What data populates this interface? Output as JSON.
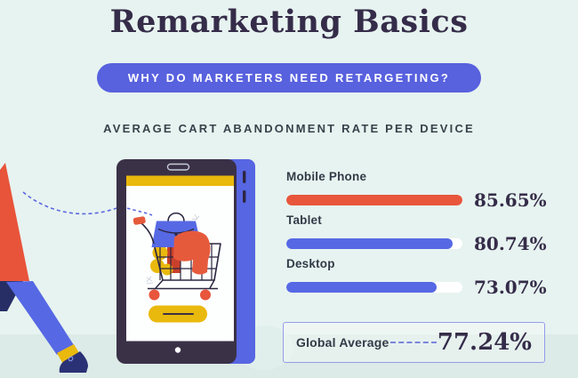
{
  "page": {
    "title": "Remarketing Basics",
    "banner": "WHY DO MARKETERS NEED RETARGETING?"
  },
  "chart_data": {
    "type": "bar",
    "orientation": "horizontal",
    "title": "AVERAGE CART ABANDONMENT RATE PER DEVICE",
    "categories": [
      "Mobile Phone",
      "Tablet",
      "Desktop"
    ],
    "values": [
      85.65,
      80.74,
      73.07
    ],
    "value_labels": [
      "85.65%",
      "80.74%",
      "73.07%"
    ],
    "bar_colors": [
      "#e8563c",
      "#5668e4",
      "#5668e4"
    ],
    "track_color": "#ffffff",
    "grid": false,
    "legend_position": "none",
    "scale_note": "bar lengths drawn relative to max value (85.65% = full track)",
    "global_average": {
      "label": "Global Average",
      "value": 77.24,
      "value_label": "77.24%"
    }
  },
  "illustration": {
    "elements": [
      "person-leg",
      "dashed-path",
      "smartphone",
      "shopping-cart",
      "shopping-bag",
      "cart-wheels"
    ],
    "colors": {
      "background": "#e7f3f0",
      "floor": "#dcebe7",
      "accent_blue": "#5861de",
      "accent_orange": "#e8563c",
      "accent_yellow": "#eab90d",
      "phone_body": "#3a3147",
      "ink": "#352c49"
    }
  }
}
